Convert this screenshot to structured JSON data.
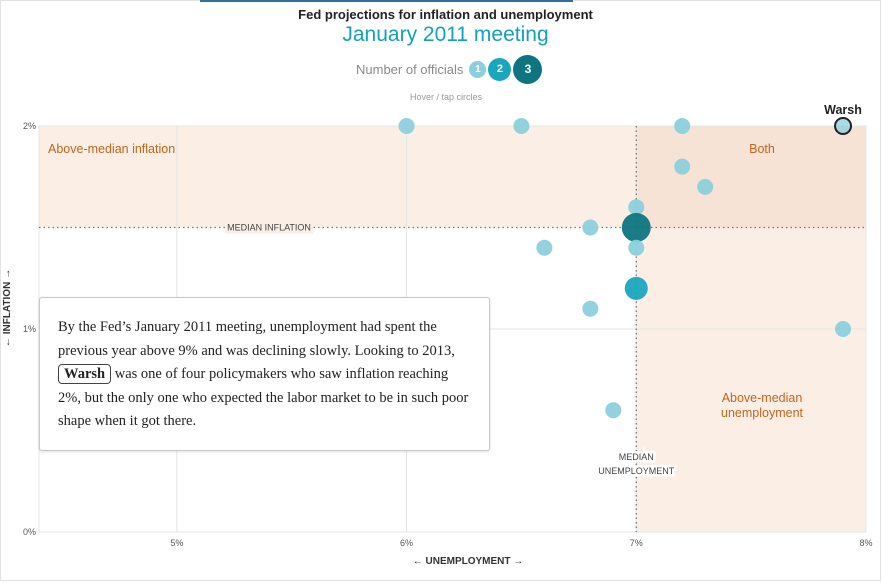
{
  "header": {
    "title": "Fed projections for inflation and unemployment",
    "subtitle": "January 2011 meeting"
  },
  "legend": {
    "label": "Number of officials",
    "items": [
      "1",
      "2",
      "3"
    ]
  },
  "hint": "Hover / tap circles",
  "callout": {
    "text_before": "By the Fed’s January 2011 meeting, unemployment had spent the previous year above 9% and was declining slowly. Looking to 2013,",
    "name": "Warsh",
    "text_after": "was one of four policymakers who saw inflation reaching 2%, but the only one who expected the labor market to be in such poor shape when it got there."
  },
  "chart_data": {
    "type": "scatter",
    "title": "Fed projections for inflation and unemployment",
    "subtitle": "January 2011 meeting",
    "xlabel": "← UNEMPLOYMENT →",
    "ylabel": "← INFLATION →",
    "xlim": [
      4.4,
      8.0
    ],
    "ylim": [
      0,
      2.0
    ],
    "xticks": [
      5,
      6,
      7,
      8
    ],
    "xtick_labels": [
      "5%",
      "6%",
      "7%",
      "8%"
    ],
    "yticks": [
      0,
      1,
      2
    ],
    "ytick_labels": [
      "0%",
      "1%",
      "2%"
    ],
    "median_inflation": 1.5,
    "median_unemployment": 7.0,
    "median_inflation_label": "MEDIAN INFLATION",
    "median_unemployment_label": [
      "MEDIAN",
      "UNEMPLOYMENT"
    ],
    "regions": [
      {
        "label": "Above-median inflation",
        "color": "#fbeee4"
      },
      {
        "label": "Both",
        "color": "#f6e3d6"
      },
      {
        "label": [
          "Above-median",
          "unemployment"
        ],
        "color": "#fbeee4"
      }
    ],
    "region_text_color": "#c0661e",
    "colors": {
      "1": "#8ccfdc",
      "2": "#1aa7bd",
      "3": "#0e7580"
    },
    "points": [
      {
        "x": 6.0,
        "y": 2.0,
        "count": 1
      },
      {
        "x": 6.5,
        "y": 2.0,
        "count": 1
      },
      {
        "x": 7.2,
        "y": 2.0,
        "count": 1
      },
      {
        "x": 7.9,
        "y": 2.0,
        "count": 1,
        "label": "Warsh",
        "highlight": true
      },
      {
        "x": 7.2,
        "y": 1.8,
        "count": 1
      },
      {
        "x": 7.3,
        "y": 1.7,
        "count": 1
      },
      {
        "x": 7.0,
        "y": 1.6,
        "count": 1
      },
      {
        "x": 6.8,
        "y": 1.5,
        "count": 1
      },
      {
        "x": 7.0,
        "y": 1.5,
        "count": 3
      },
      {
        "x": 6.6,
        "y": 1.4,
        "count": 1
      },
      {
        "x": 7.0,
        "y": 1.4,
        "count": 1
      },
      {
        "x": 7.0,
        "y": 1.2,
        "count": 2
      },
      {
        "x": 6.8,
        "y": 1.1,
        "count": 1
      },
      {
        "x": 7.9,
        "y": 1.0,
        "count": 1
      },
      {
        "x": 6.9,
        "y": 0.6,
        "count": 1
      }
    ]
  }
}
